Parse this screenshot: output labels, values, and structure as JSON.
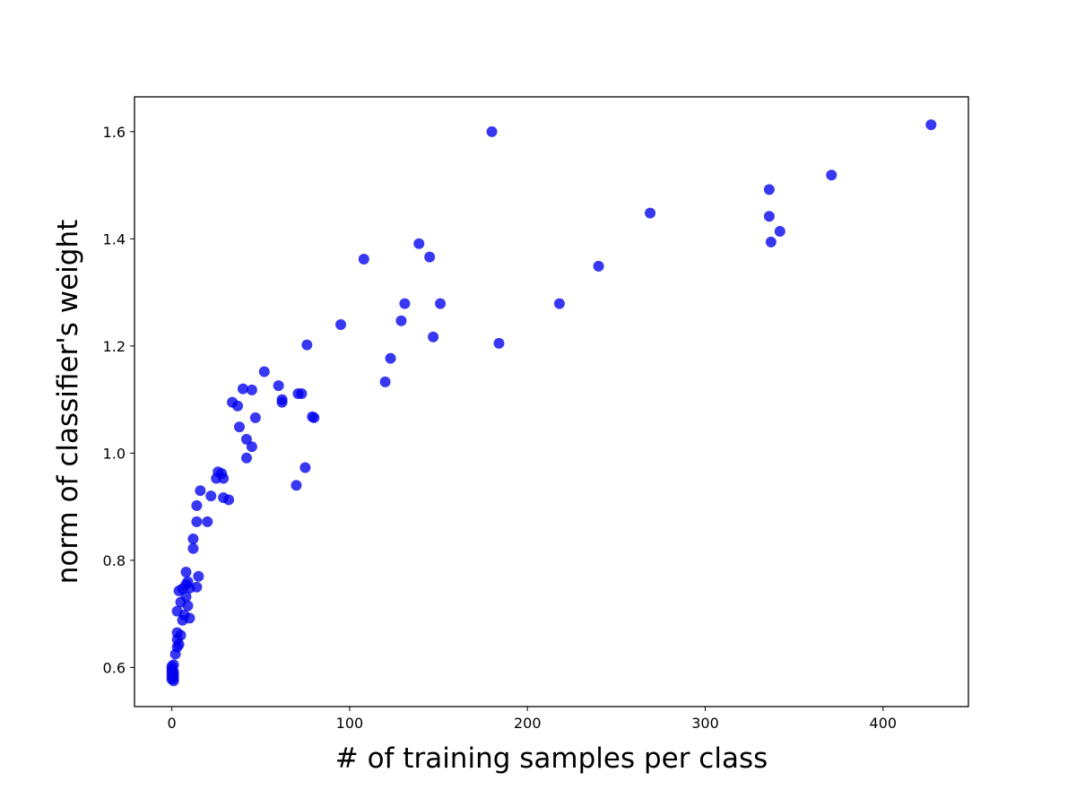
{
  "chart_data": {
    "type": "scatter",
    "title": "",
    "xlabel": "# of training samples per class",
    "ylabel": "norm of classifier's weight",
    "xlim": [
      -21,
      448
    ],
    "ylim": [
      0.527,
      1.665
    ],
    "xticks": [
      0,
      100,
      200,
      300,
      400
    ],
    "yticks": [
      0.6,
      0.8,
      1.0,
      1.2,
      1.4,
      1.6
    ],
    "xtick_labels": [
      "0",
      "100",
      "200",
      "300",
      "400"
    ],
    "ytick_labels": [
      "0.6",
      "0.8",
      "1.0",
      "1.2",
      "1.4",
      "1.6"
    ],
    "grid": false,
    "marker_color": "#0000ee",
    "marker_alpha": 0.78,
    "series": [
      {
        "points": [
          [
            0,
            0.578
          ],
          [
            0,
            0.584
          ],
          [
            0,
            0.59
          ],
          [
            0,
            0.596
          ],
          [
            0,
            0.602
          ],
          [
            1,
            0.575
          ],
          [
            1,
            0.58
          ],
          [
            1,
            0.586
          ],
          [
            1,
            0.592
          ],
          [
            1,
            0.605
          ],
          [
            2,
            0.625
          ],
          [
            3,
            0.638
          ],
          [
            3,
            0.652
          ],
          [
            3,
            0.665
          ],
          [
            4,
            0.643
          ],
          [
            5,
            0.66
          ],
          [
            3,
            0.705
          ],
          [
            4,
            0.743
          ],
          [
            5,
            0.722
          ],
          [
            6,
            0.688
          ],
          [
            6,
            0.747
          ],
          [
            7,
            0.698
          ],
          [
            8,
            0.732
          ],
          [
            8,
            0.755
          ],
          [
            8,
            0.778
          ],
          [
            9,
            0.715
          ],
          [
            9,
            0.76
          ],
          [
            10,
            0.692
          ],
          [
            10,
            0.748
          ],
          [
            12,
            0.822
          ],
          [
            12,
            0.84
          ],
          [
            14,
            0.75
          ],
          [
            14,
            0.872
          ],
          [
            14,
            0.902
          ],
          [
            15,
            0.77
          ],
          [
            16,
            0.93
          ],
          [
            20,
            0.872
          ],
          [
            22,
            0.92
          ],
          [
            25,
            0.953
          ],
          [
            26,
            0.965
          ],
          [
            28,
            0.962
          ],
          [
            29,
            0.917
          ],
          [
            29,
            0.953
          ],
          [
            32,
            0.913
          ],
          [
            34,
            1.095
          ],
          [
            37,
            1.088
          ],
          [
            38,
            1.049
          ],
          [
            40,
            1.12
          ],
          [
            42,
            0.991
          ],
          [
            42,
            1.026
          ],
          [
            45,
            1.012
          ],
          [
            45,
            1.118
          ],
          [
            47,
            1.066
          ],
          [
            52,
            1.152
          ],
          [
            60,
            1.126
          ],
          [
            62,
            1.1
          ],
          [
            62,
            1.095
          ],
          [
            70,
            0.94
          ],
          [
            71,
            1.111
          ],
          [
            73,
            1.111
          ],
          [
            75,
            0.973
          ],
          [
            76,
            1.202
          ],
          [
            79,
            1.068
          ],
          [
            80,
            1.066
          ],
          [
            95,
            1.24
          ],
          [
            108,
            1.362
          ],
          [
            120,
            1.133
          ],
          [
            123,
            1.177
          ],
          [
            129,
            1.247
          ],
          [
            131,
            1.279
          ],
          [
            139,
            1.391
          ],
          [
            145,
            1.366
          ],
          [
            147,
            1.217
          ],
          [
            151,
            1.279
          ],
          [
            180,
            1.6
          ],
          [
            184,
            1.205
          ],
          [
            218,
            1.279
          ],
          [
            240,
            1.349
          ],
          [
            269,
            1.448
          ],
          [
            336,
            1.492
          ],
          [
            336,
            1.442
          ],
          [
            337,
            1.394
          ],
          [
            342,
            1.414
          ],
          [
            371,
            1.519
          ],
          [
            427,
            1.613
          ]
        ]
      }
    ]
  }
}
